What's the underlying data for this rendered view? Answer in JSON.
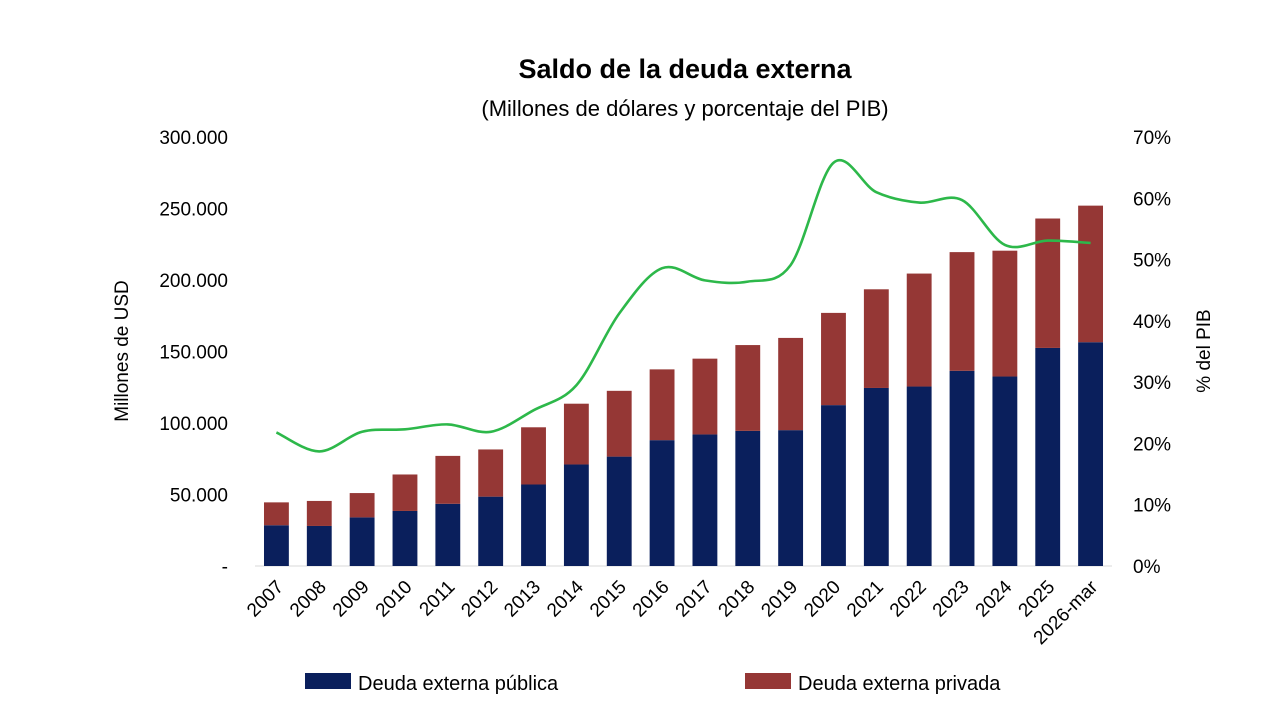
{
  "chart_data": {
    "type": "bar",
    "title": "Saldo de la deuda externa",
    "subtitle": "(Millones de dólares y porcentaje del PIB)",
    "ylabel": "Millones de USD",
    "y2label": "% del PIB",
    "ylim": [
      0,
      300000
    ],
    "y2lim": [
      0,
      70
    ],
    "y_ticks": [
      "-",
      "50.000",
      "100.000",
      "150.000",
      "200.000",
      "250.000",
      "300.000"
    ],
    "y2_ticks": [
      "0%",
      "10%",
      "20%",
      "30%",
      "40%",
      "50%",
      "60%",
      "70%"
    ],
    "stacked": true,
    "categories": [
      "2007",
      "2008",
      "2009",
      "2010",
      "2011",
      "2012",
      "2013",
      "2014",
      "2015",
      "2016",
      "2017",
      "2018",
      "2019",
      "2020",
      "2021",
      "2022",
      "2023",
      "2024",
      "2025",
      "2026-mar"
    ],
    "series": [
      {
        "name": "Deuda externa pública",
        "color": "#0a1f5c",
        "values": [
          28500,
          28000,
          34000,
          38500,
          43500,
          48500,
          57000,
          71000,
          76500,
          88000,
          92000,
          94500,
          95000,
          112500,
          124500,
          125500,
          136500,
          132500,
          152500,
          156500
        ]
      },
      {
        "name": "Deuda externa privada",
        "color": "#953735",
        "values": [
          16000,
          17500,
          17000,
          25500,
          33500,
          33000,
          40000,
          42500,
          46000,
          49500,
          53000,
          60000,
          64500,
          64500,
          69000,
          79000,
          83000,
          88000,
          90500,
          95500
        ]
      }
    ],
    "line": {
      "name": "% del PIB",
      "color": "#2db84a",
      "axis": "right",
      "values": [
        21.8,
        18.7,
        21.9,
        22.3,
        23.1,
        21.9,
        25.4,
        29.5,
        41.2,
        48.6,
        46.6,
        46.4,
        49.1,
        65.8,
        61.0,
        59.3,
        59.7,
        52.4,
        53.1,
        52.7
      ]
    },
    "legend_position": "bottom",
    "grid": false
  }
}
